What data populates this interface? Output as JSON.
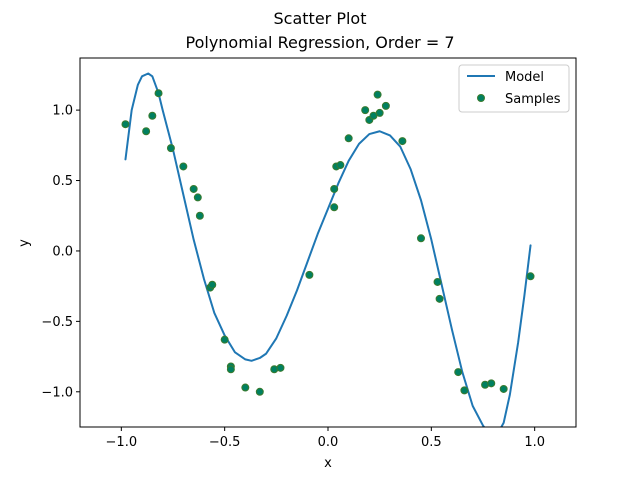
{
  "chart_data": {
    "type": "scatter",
    "title": "Scatter Plot",
    "subtitle": "Polynomial Regression, Order = 7",
    "xlabel": "x",
    "ylabel": "y",
    "xlim": [
      -1.2,
      1.2
    ],
    "ylim": [
      -1.25,
      1.37
    ],
    "xticks": [
      -1.0,
      -0.5,
      0.0,
      0.5,
      1.0
    ],
    "xtick_labels": [
      "−1.0",
      "−0.5",
      "0.0",
      "0.5",
      "1.0"
    ],
    "yticks": [
      -1.0,
      -0.5,
      0.0,
      0.5,
      1.0
    ],
    "ytick_labels": [
      "−1.0",
      "−0.5",
      "0.0",
      "0.5",
      "1.0"
    ],
    "grid": false,
    "legend": {
      "position": "top-right",
      "entries": [
        "Model",
        "Samples"
      ]
    },
    "series": [
      {
        "name": "Model",
        "kind": "line",
        "color": "#1f77b4",
        "x": [
          -0.98,
          -0.95,
          -0.92,
          -0.9,
          -0.87,
          -0.85,
          -0.82,
          -0.8,
          -0.75,
          -0.7,
          -0.65,
          -0.6,
          -0.55,
          -0.5,
          -0.45,
          -0.4,
          -0.37,
          -0.33,
          -0.3,
          -0.25,
          -0.2,
          -0.15,
          -0.1,
          -0.05,
          0.0,
          0.05,
          0.1,
          0.15,
          0.2,
          0.25,
          0.3,
          0.35,
          0.4,
          0.45,
          0.5,
          0.55,
          0.6,
          0.65,
          0.7,
          0.75,
          0.78,
          0.82,
          0.85,
          0.88,
          0.92,
          0.95,
          0.98
        ],
        "y": [
          0.65,
          1.0,
          1.18,
          1.24,
          1.26,
          1.24,
          1.12,
          1.0,
          0.72,
          0.4,
          0.08,
          -0.2,
          -0.44,
          -0.6,
          -0.72,
          -0.77,
          -0.78,
          -0.76,
          -0.73,
          -0.62,
          -0.46,
          -0.28,
          -0.08,
          0.12,
          0.3,
          0.48,
          0.64,
          0.76,
          0.83,
          0.85,
          0.82,
          0.74,
          0.58,
          0.36,
          0.08,
          -0.24,
          -0.56,
          -0.86,
          -1.1,
          -1.24,
          -1.3,
          -1.3,
          -1.22,
          -1.02,
          -0.65,
          -0.32,
          0.04
        ]
      },
      {
        "name": "Samples",
        "kind": "scatter",
        "color": "#008060",
        "edge_color": "#3a7a2e",
        "x": [
          -0.98,
          -0.88,
          -0.85,
          -0.82,
          -0.76,
          -0.7,
          -0.65,
          -0.63,
          -0.62,
          -0.57,
          -0.56,
          -0.5,
          -0.47,
          -0.47,
          -0.4,
          -0.33,
          -0.26,
          -0.23,
          -0.09,
          0.03,
          0.03,
          0.04,
          0.06,
          0.1,
          0.18,
          0.2,
          0.22,
          0.24,
          0.25,
          0.28,
          0.36,
          0.45,
          0.53,
          0.54,
          0.63,
          0.66,
          0.76,
          0.79,
          0.85,
          0.98
        ],
        "y": [
          0.9,
          0.85,
          0.96,
          1.12,
          0.73,
          0.6,
          0.44,
          0.38,
          0.25,
          -0.26,
          -0.24,
          -0.63,
          -0.82,
          -0.84,
          -0.97,
          -1.0,
          -0.84,
          -0.83,
          -0.17,
          0.44,
          0.31,
          0.6,
          0.61,
          0.8,
          1.0,
          0.93,
          0.96,
          1.11,
          0.98,
          1.03,
          0.78,
          0.09,
          -0.22,
          -0.34,
          -0.86,
          -0.99,
          -0.95,
          -0.94,
          -0.98,
          -0.18
        ]
      }
    ]
  }
}
